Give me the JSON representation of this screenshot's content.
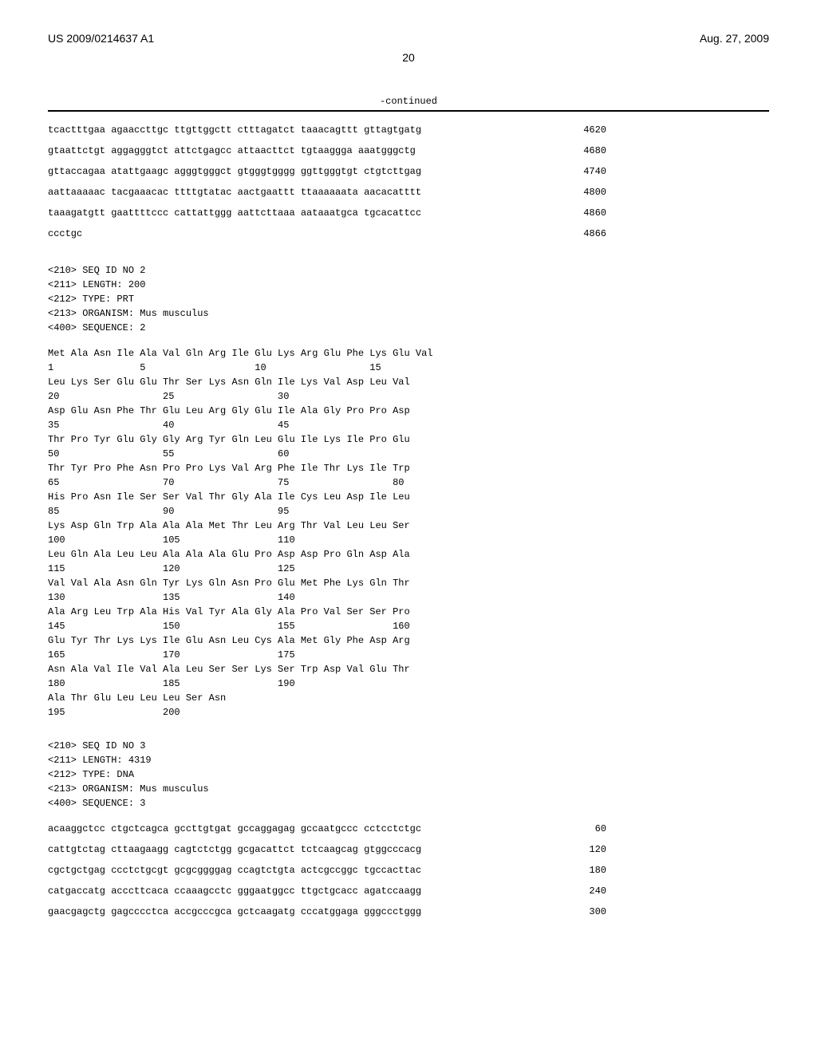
{
  "header": {
    "doc_id": "US 2009/0214637 A1",
    "date": "Aug. 27, 2009"
  },
  "page_number": "20",
  "continued_label": "-continued",
  "seq1_lines": [
    {
      "text": "tcactttgaa agaaccttgc ttgttggctt ctttagatct taaacagttt gttagtgatg",
      "num": "4620"
    },
    {
      "text": "gtaattctgt aggagggtct attctgagcc attaacttct tgtaaggga aaatgggctg",
      "num": "4680"
    },
    {
      "text": "gttaccagaa atattgaagc agggtgggct gtgggtgggg ggttgggtgt ctgtcttgag",
      "num": "4740"
    },
    {
      "text": "aattaaaaac tacgaaacac ttttgtatac aactgaattt ttaaaaaata aacacatttt",
      "num": "4800"
    },
    {
      "text": "taaagatgtt gaattttccc cattattggg aattcttaaa aataaatgca tgcacattcc",
      "num": "4860"
    },
    {
      "text": "ccctgc",
      "num": "4866"
    }
  ],
  "seq2_header": [
    "<210> SEQ ID NO 2",
    "<211> LENGTH: 200",
    "<212> TYPE: PRT",
    "<213> ORGANISM: Mus musculus",
    "",
    "<400> SEQUENCE: 2"
  ],
  "seq2_lines": [
    "Met Ala Asn Ile Ala Val Gln Arg Ile Glu Lys Arg Glu Phe Lys Glu Val",
    "1               5                   10                  15",
    "",
    "Leu Lys Ser Glu Glu Thr Ser Lys Asn Gln Ile Lys Val Asp Leu Val",
    "20                  25                  30",
    "",
    "Asp Glu Asn Phe Thr Glu Leu Arg Gly Glu Ile Ala Gly Pro Pro Asp",
    "35                  40                  45",
    "",
    "Thr Pro Tyr Glu Gly Gly Arg Tyr Gln Leu Glu Ile Lys Ile Pro Glu",
    "50                  55                  60",
    "",
    "Thr Tyr Pro Phe Asn Pro Pro Lys Val Arg Phe Ile Thr Lys Ile Trp",
    "65                  70                  75                  80",
    "",
    "His Pro Asn Ile Ser Ser Val Thr Gly Ala Ile Cys Leu Asp Ile Leu",
    "85                  90                  95",
    "",
    "Lys Asp Gln Trp Ala Ala Ala Met Thr Leu Arg Thr Val Leu Leu Ser",
    "100                 105                 110",
    "",
    "Leu Gln Ala Leu Leu Ala Ala Ala Glu Pro Asp Asp Pro Gln Asp Ala",
    "115                 120                 125",
    "",
    "Val Val Ala Asn Gln Tyr Lys Gln Asn Pro Glu Met Phe Lys Gln Thr",
    "130                 135                 140",
    "",
    "Ala Arg Leu Trp Ala His Val Tyr Ala Gly Ala Pro Val Ser Ser Pro",
    "145                 150                 155                 160",
    "",
    "Glu Tyr Thr Lys Lys Ile Glu Asn Leu Cys Ala Met Gly Phe Asp Arg",
    "165                 170                 175",
    "",
    "Asn Ala Val Ile Val Ala Leu Ser Ser Lys Ser Trp Asp Val Glu Thr",
    "180                 185                 190",
    "",
    "Ala Thr Glu Leu Leu Leu Ser Asn",
    "195                 200"
  ],
  "seq3_header": [
    "<210> SEQ ID NO 3",
    "<211> LENGTH: 4319",
    "<212> TYPE: DNA",
    "<213> ORGANISM: Mus musculus",
    "",
    "<400> SEQUENCE: 3"
  ],
  "seq3_lines": [
    {
      "text": "acaaggctcc ctgctcagca gccttgtgat gccaggagag gccaatgccc cctcctctgc",
      "num": "60"
    },
    {
      "text": "cattgtctag cttaagaagg cagtctctgg gcgacattct tctcaagcag gtggcccacg",
      "num": "120"
    },
    {
      "text": "cgctgctgag ccctctgcgt gcgcggggag ccagtctgta actcgccggc tgccacttac",
      "num": "180"
    },
    {
      "text": "catgaccatg acccttcaca ccaaagcctc gggaatggcc ttgctgcacc agatccaagg",
      "num": "240"
    },
    {
      "text": "gaacgagctg gagcccctca accgcccgca gctcaagatg cccatggaga gggccctggg",
      "num": "300"
    }
  ],
  "style": {
    "font_mono": "Courier New",
    "font_sans": "Arial",
    "text_color": "#000000",
    "background_color": "#ffffff",
    "hr_color": "#000000",
    "body_font_size": 13,
    "mono_font_size": 12,
    "header_font_size": 14
  }
}
